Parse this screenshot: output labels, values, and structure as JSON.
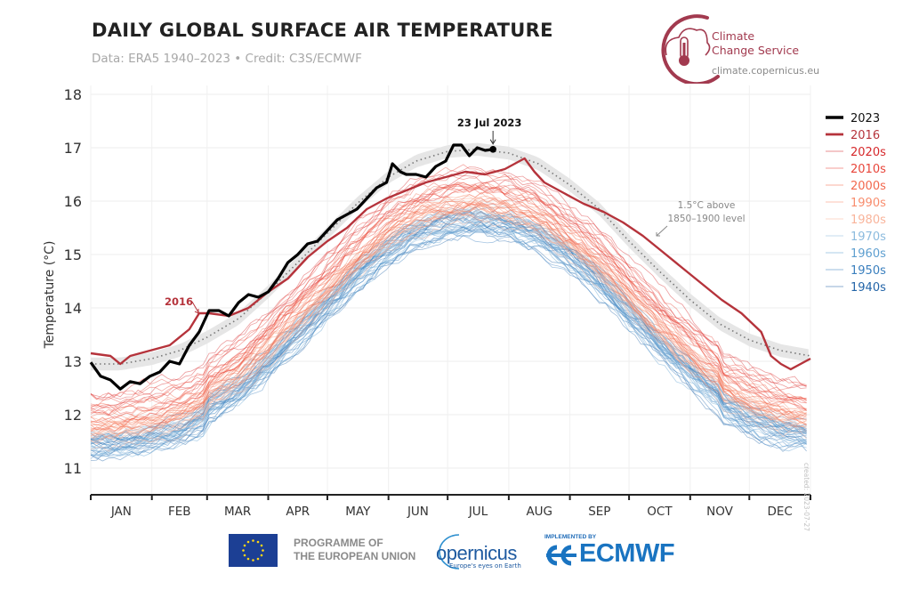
{
  "header": {
    "title": "DAILY GLOBAL SURFACE AIR TEMPERATURE",
    "subtitle": "Data: ERA5 1940–2023 • Credit: C3S/ECMWF"
  },
  "logo": {
    "name_line1": "Climate",
    "name_line2": "Change Service",
    "url": "climate.copernicus.eu",
    "brand_color": "#a23a4f"
  },
  "footer": {
    "eu_line1": "PROGRAMME OF",
    "eu_line2": "THE EUROPEAN UNION",
    "copernicus": "opernicus",
    "copernicus_tagline": "Europe's eyes on Earth",
    "implemented_by": "IMPLEMENTED BY",
    "ecmwf": "ECMWF"
  },
  "created_note": "created: 2023-07-27",
  "chart_data": {
    "type": "line",
    "title": "DAILY GLOBAL SURFACE AIR TEMPERATURE",
    "xlabel": "",
    "ylabel": "Temperature (°C)",
    "ylim": [
      10.5,
      18.3
    ],
    "xlim_day_of_year": [
      0,
      365
    ],
    "yticks": [
      11,
      12,
      13,
      14,
      15,
      16,
      17,
      18
    ],
    "month_labels": [
      "JAN",
      "FEB",
      "MAR",
      "APR",
      "MAY",
      "JUN",
      "JUL",
      "AUG",
      "SEP",
      "OCT",
      "NOV",
      "DEC"
    ],
    "month_start_days": [
      0,
      31,
      59,
      90,
      120,
      151,
      181,
      212,
      243,
      273,
      304,
      334,
      365
    ],
    "grid": true,
    "legend_position": "right",
    "legend": [
      {
        "label": "2023",
        "color": "#000000",
        "kind": "bold"
      },
      {
        "label": "2016",
        "color": "#b5333b",
        "kind": "bold"
      },
      {
        "label": "2020s",
        "color": "#d6282b",
        "kind": "decade"
      },
      {
        "label": "2010s",
        "color": "#e8453a",
        "kind": "decade"
      },
      {
        "label": "2000s",
        "color": "#f2684d",
        "kind": "decade"
      },
      {
        "label": "1990s",
        "color": "#f88d6e",
        "kind": "decade"
      },
      {
        "label": "1980s",
        "color": "#f9b49b",
        "kind": "decade"
      },
      {
        "label": "1970s",
        "color": "#8cbbde",
        "kind": "decade"
      },
      {
        "label": "1960s",
        "color": "#5e9fd0",
        "kind": "decade"
      },
      {
        "label": "1950s",
        "color": "#3a7fbe",
        "kind": "decade"
      },
      {
        "label": "1940s",
        "color": "#2465a8",
        "kind": "decade"
      }
    ],
    "series": [
      {
        "name": "2023",
        "color": "#000000",
        "x": [
          0,
          5,
          10,
          15,
          20,
          25,
          30,
          35,
          40,
          45,
          50,
          55,
          60,
          65,
          70,
          75,
          80,
          85,
          90,
          95,
          100,
          105,
          110,
          115,
          120,
          125,
          130,
          135,
          140,
          145,
          150,
          153,
          157,
          160,
          165,
          170,
          175,
          180,
          184,
          188,
          192,
          196,
          200,
          204
        ],
        "y": [
          12.98,
          12.72,
          12.65,
          12.48,
          12.62,
          12.58,
          12.72,
          12.8,
          13.0,
          12.95,
          13.3,
          13.55,
          13.95,
          13.95,
          13.85,
          14.1,
          14.25,
          14.2,
          14.3,
          14.55,
          14.85,
          15.0,
          15.2,
          15.25,
          15.45,
          15.65,
          15.75,
          15.85,
          16.05,
          16.25,
          16.35,
          16.7,
          16.55,
          16.5,
          16.5,
          16.45,
          16.65,
          16.75,
          17.05,
          17.05,
          16.85,
          17.0,
          16.95,
          16.97
        ]
      },
      {
        "name": "2016",
        "color": "#b5333b",
        "x": [
          0,
          10,
          15,
          20,
          30,
          40,
          50,
          55,
          60,
          70,
          80,
          90,
          100,
          110,
          120,
          130,
          140,
          150,
          160,
          170,
          180,
          190,
          200,
          210,
          220,
          225,
          230,
          240,
          250,
          260,
          270,
          280,
          290,
          300,
          310,
          320,
          330,
          340,
          345,
          350,
          355,
          365
        ],
        "y": [
          13.15,
          13.1,
          12.95,
          13.1,
          13.2,
          13.3,
          13.6,
          13.9,
          13.9,
          13.85,
          14.0,
          14.3,
          14.55,
          14.95,
          15.25,
          15.5,
          15.85,
          16.05,
          16.2,
          16.35,
          16.45,
          16.55,
          16.5,
          16.6,
          16.8,
          16.55,
          16.35,
          16.15,
          15.95,
          15.8,
          15.6,
          15.35,
          15.05,
          14.75,
          14.45,
          14.15,
          13.9,
          13.55,
          13.1,
          12.95,
          12.85,
          13.05
        ]
      },
      {
        "name": "1.5°C above 1850–1900 level",
        "color": "#777777",
        "style": "dotted",
        "x": [
          0,
          15,
          31,
          45,
          59,
          75,
          90,
          105,
          120,
          135,
          151,
          165,
          181,
          196,
          212,
          227,
          243,
          258,
          273,
          288,
          304,
          319,
          334,
          350,
          365
        ],
        "y": [
          12.95,
          12.95,
          13.05,
          13.2,
          13.45,
          13.8,
          14.3,
          14.85,
          15.4,
          15.95,
          16.45,
          16.75,
          16.93,
          16.97,
          16.9,
          16.7,
          16.3,
          15.85,
          15.25,
          14.7,
          14.15,
          13.7,
          13.4,
          13.2,
          13.1
        ]
      }
    ],
    "decade_offsets_from_1_5C_line": {
      "2020s": -0.45,
      "2010s": -0.65,
      "2000s": -0.85,
      "1990s": -1.05,
      "1980s": -1.2,
      "1970s": -1.35,
      "1960s": -1.4,
      "1950s": -1.45,
      "1940s": -1.4
    },
    "annotations": [
      {
        "text": "23 Jul 2023",
        "target_day": 204,
        "target_value": 16.97
      },
      {
        "text": "2016",
        "target_day": 45,
        "target_value": 13.9,
        "color": "#b5333b"
      },
      {
        "text_line1": "1.5°C above",
        "text_line2": "1850–1900 level",
        "target_day": 283,
        "target_value": 15.4
      }
    ]
  }
}
